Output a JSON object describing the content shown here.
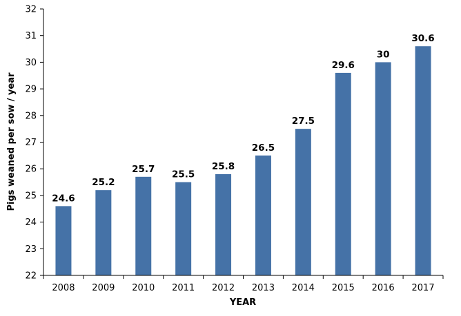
{
  "chart_data": {
    "type": "bar",
    "title": "",
    "xlabel": "YEAR",
    "ylabel": "Pigs weaned per sow / year",
    "categories": [
      "2008",
      "2009",
      "2010",
      "2011",
      "2012",
      "2013",
      "2014",
      "2015",
      "2016",
      "2017"
    ],
    "values": [
      24.6,
      25.2,
      25.7,
      25.5,
      25.8,
      26.5,
      27.5,
      29.6,
      30,
      30.6
    ],
    "value_labels": [
      "24.6",
      "25.2",
      "25.7",
      "25.5",
      "25.8",
      "26.5",
      "27.5",
      "29.6",
      "30",
      "30.6"
    ],
    "ylim": [
      22,
      32
    ],
    "yticks": [
      22,
      23,
      24,
      25,
      26,
      27,
      28,
      29,
      30,
      31,
      32
    ],
    "ytick_labels": [
      "22",
      "23",
      "24",
      "25",
      "26",
      "27",
      "28",
      "29",
      "30",
      "31",
      "32"
    ],
    "grid": false,
    "legend": "none",
    "bar_color": "#4572A7",
    "axis_color": "#000000"
  }
}
